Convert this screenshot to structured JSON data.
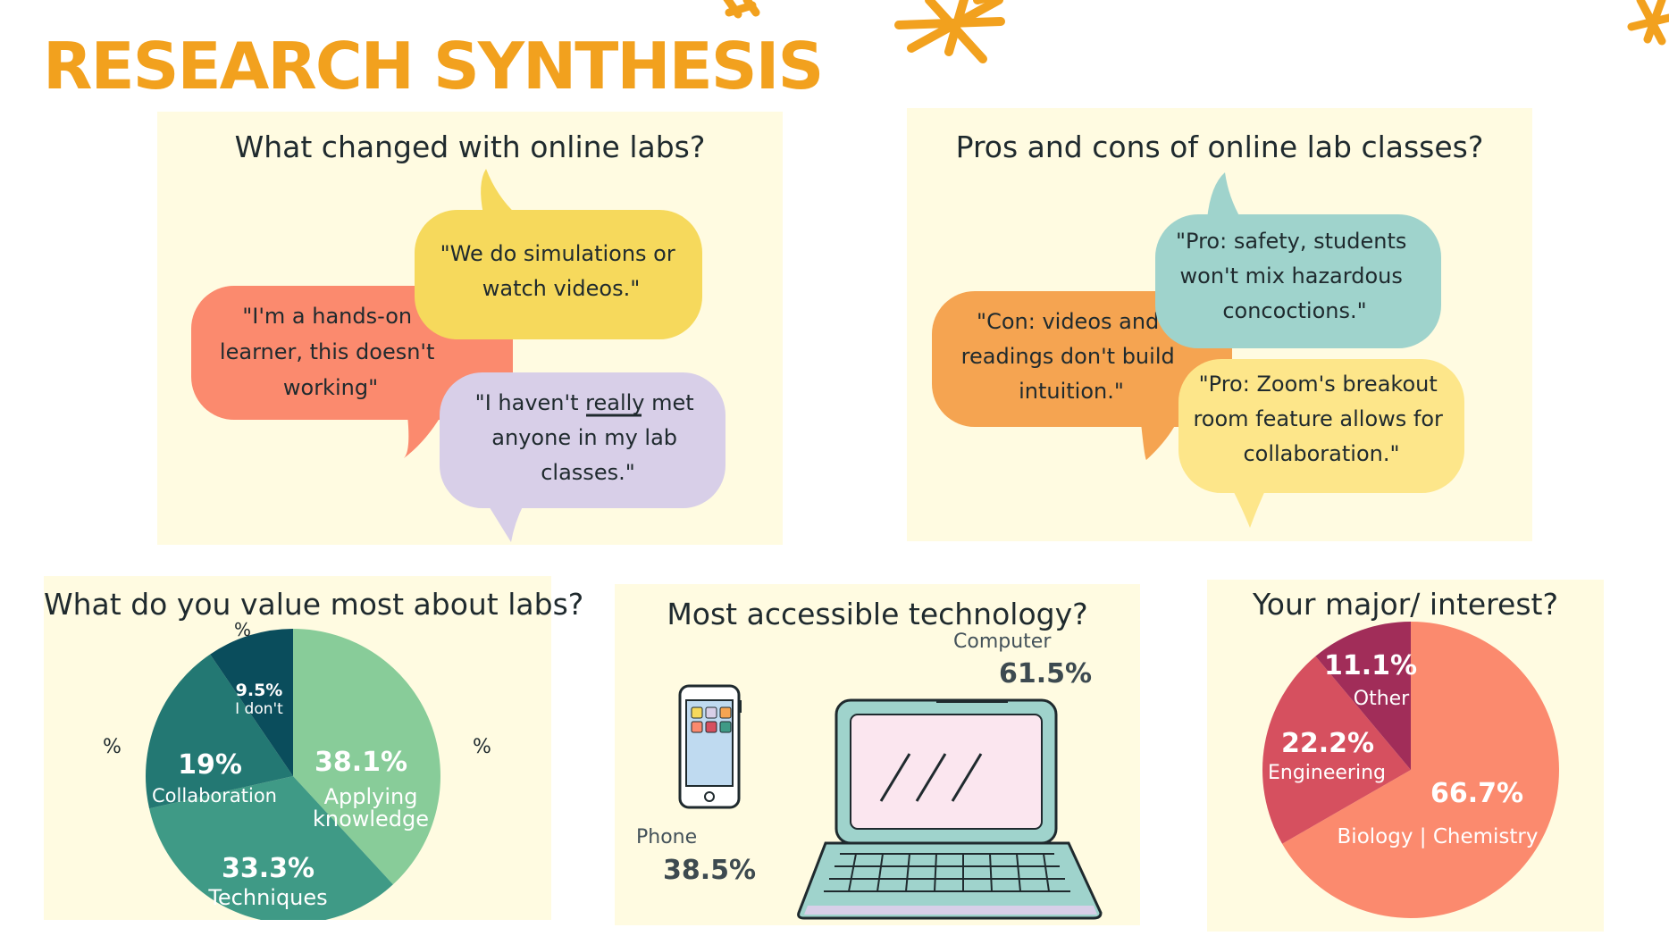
{
  "title": "RESEARCH SYNTHESIS",
  "colors": {
    "accent": "#f2a11e",
    "panel": "#fffbe1",
    "bubble_red": "#fb8a6e",
    "bubble_yellow": "#f6d95c",
    "bubble_lavender": "#d8cfe8",
    "bubble_orange": "#f5a451",
    "bubble_teal": "#9fd3cc",
    "bubble_light_yellow": "#fde68a"
  },
  "panels": {
    "online_labs": {
      "title": "What changed with online labs?",
      "quotes": [
        {
          "lines": [
            "\"I'm a hands-on",
            "learner, this doesn't",
            "working\""
          ]
        },
        {
          "lines": [
            "\"We do simulations or",
            "watch videos.\""
          ]
        },
        {
          "lines": [
            "\"I haven't really met",
            "anyone in my lab",
            "classes.\""
          ]
        }
      ]
    },
    "pros_cons": {
      "title": "Pros and cons of online lab classes?",
      "quotes": [
        {
          "lines": [
            "\"Con: videos and",
            "readings don't build",
            "intuition.\""
          ]
        },
        {
          "lines": [
            "\"Pro: safety, students",
            "won't mix hazardous",
            "concoctions.\""
          ]
        },
        {
          "lines": [
            "\"Pro: Zoom's breakout",
            "room feature allows for",
            "collaboration.\""
          ]
        }
      ]
    },
    "technology": {
      "title": "Most accessible technology?",
      "icons": [
        "phone-icon",
        "laptop-icon"
      ]
    }
  },
  "chart_data": [
    {
      "type": "pie",
      "title": "What do you value most about labs?",
      "slices": [
        {
          "label": "Applying knowledge",
          "value": 38.1,
          "display": "38.1%",
          "color": "#88cc99"
        },
        {
          "label": "Techniques",
          "value": 33.3,
          "display": "33.3%",
          "color": "#3f9a86"
        },
        {
          "label": "Collaboration",
          "value": 19,
          "display": "19%",
          "color": "#237873"
        },
        {
          "label": "I don't",
          "value": 9.5,
          "display": "9.5%",
          "color": "#0a4d5c"
        }
      ],
      "stray_labels": [
        "%",
        "%",
        "%"
      ]
    },
    {
      "type": "bar",
      "title": "Most accessible technology?",
      "categories": [
        "Computer",
        "Phone"
      ],
      "values": [
        61.5,
        38.5
      ],
      "display": [
        "61.5%",
        "38.5%"
      ]
    },
    {
      "type": "pie",
      "title": "Your major/ interest?",
      "slices": [
        {
          "label": "Biology | Chemistry",
          "value": 66.7,
          "display": "66.7%",
          "color": "#fb8a6e"
        },
        {
          "label": "Engineering",
          "value": 22.2,
          "display": "22.2%",
          "color": "#d6505f"
        },
        {
          "label": "Other",
          "value": 11.1,
          "display": "11.1%",
          "color": "#a12d59"
        }
      ]
    }
  ]
}
